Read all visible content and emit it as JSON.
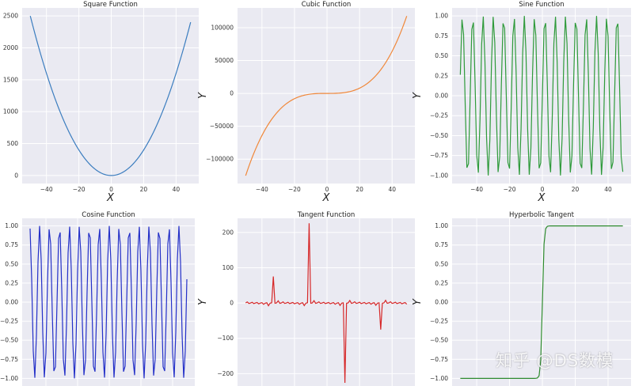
{
  "watermark": "知乎 @DS数模",
  "chart_data": [
    {
      "type": "line",
      "title": "Square Function",
      "xlabel": "X",
      "ylabel": "",
      "function": "square",
      "x_range": [
        -50,
        49
      ],
      "xlim": [
        -55,
        54
      ],
      "ylim": [
        -125,
        2625
      ],
      "xticks": [
        -40,
        -20,
        0,
        20,
        40
      ],
      "yticks": [
        0,
        500,
        1000,
        1500,
        2000,
        2500
      ],
      "ytick_labels": [
        "0",
        "500",
        "1000",
        "1500",
        "2000",
        "2500"
      ],
      "color": "#3b7dbf"
    },
    {
      "type": "line",
      "title": "Cubic Function",
      "xlabel": "X",
      "ylabel": "Y",
      "function": "cubic",
      "x_range": [
        -50,
        49
      ],
      "xlim": [
        -55,
        54
      ],
      "ylim": [
        -137000,
        130000
      ],
      "xticks": [
        -40,
        -20,
        0,
        20,
        40
      ],
      "yticks": [
        -100000,
        -50000,
        0,
        50000,
        100000
      ],
      "ytick_labels": [
        "−100000",
        "−50000",
        "0",
        "50000",
        "100000"
      ],
      "color": "#f0883a"
    },
    {
      "type": "line",
      "title": "Sine Function",
      "xlabel": "X",
      "ylabel": "Y",
      "function": "sine",
      "x_range": [
        -50,
        49
      ],
      "xlim": [
        -55,
        54
      ],
      "ylim": [
        -1.1,
        1.1
      ],
      "xticks": [
        -40,
        -20,
        0,
        20,
        40
      ],
      "yticks": [
        -1.0,
        -0.75,
        -0.5,
        -0.25,
        0.0,
        0.25,
        0.5,
        0.75,
        1.0
      ],
      "ytick_labels": [
        "−1.00",
        "−0.75",
        "−0.50",
        "−0.25",
        "0.00",
        "0.25",
        "0.50",
        "0.75",
        "1.00"
      ],
      "color": "#2e9a3a"
    },
    {
      "type": "line",
      "title": "Cosine Function",
      "xlabel": "",
      "ylabel": "",
      "function": "cosine",
      "x_range": [
        -50,
        49
      ],
      "xlim": [
        -55,
        54
      ],
      "ylim": [
        -1.1,
        1.1
      ],
      "xticks": [],
      "yticks": [
        -1.0,
        -0.75,
        -0.5,
        -0.25,
        0.0,
        0.25,
        0.5,
        0.75,
        1.0
      ],
      "ytick_labels": [
        "−1.00",
        "−0.75",
        "−0.50",
        "−0.25",
        "0.00",
        "0.25",
        "0.50",
        "0.75",
        "1.00"
      ],
      "color": "#2430c8"
    },
    {
      "type": "line",
      "title": "Tangent Function",
      "xlabel": "",
      "ylabel": "Y",
      "function": "tangent",
      "x_range": [
        -50,
        49
      ],
      "xlim": [
        -55,
        54
      ],
      "ylim": [
        -235,
        240
      ],
      "xticks": [],
      "yticks": [
        -200,
        -100,
        0,
        100,
        200
      ],
      "ytick_labels": [
        "−200",
        "−100",
        "0",
        "100",
        "200"
      ],
      "color": "#d62728"
    },
    {
      "type": "line",
      "title": "Hyperbolic Tangent",
      "xlabel": "",
      "ylabel": "Y",
      "function": "tanh",
      "x_range": [
        -50,
        49
      ],
      "xlim": [
        -55,
        54
      ],
      "ylim": [
        -1.1,
        1.1
      ],
      "xticks": [],
      "yticks": [
        -1.0,
        -0.75,
        -0.5,
        -0.25,
        0.0,
        0.25,
        0.5,
        0.75,
        1.0
      ],
      "ytick_labels": [
        "−1.00",
        "−0.75",
        "−0.50",
        "−0.25",
        "0.00",
        "0.25",
        "0.50",
        "0.75",
        "1.00"
      ],
      "color": "#2e8b2e"
    }
  ]
}
